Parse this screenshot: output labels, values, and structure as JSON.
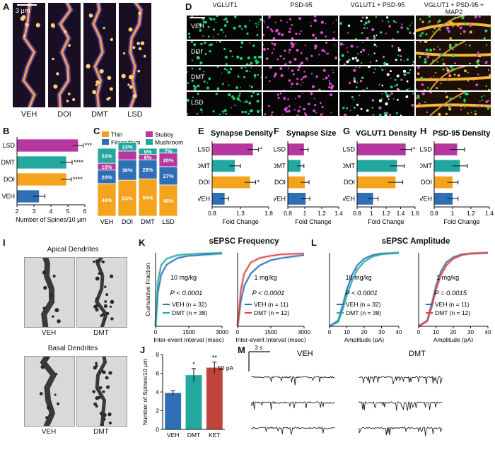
{
  "panel_letters": [
    "A",
    "B",
    "C",
    "D",
    "E",
    "F",
    "G",
    "H",
    "I",
    "J",
    "K",
    "L",
    "M"
  ],
  "colors": {
    "VEH": "#2e6fb5",
    "DOI": "#f5a21c",
    "DMT": "#22a89f",
    "LSD": "#b5379f",
    "KET": "#c1443c",
    "VEH_1mg": "#2e6fb5",
    "DMT_1mg": "#e0443c",
    "stubby": "#b5379f",
    "mushroom": "#22a89f",
    "thin": "#f5a21c",
    "filopodium": "#2e6fb5"
  },
  "panel_A": {
    "scale_label": "3 μm",
    "labels": [
      "VEH",
      "DOI",
      "DMT",
      "LSD"
    ]
  },
  "panel_D": {
    "scale_label": "10 μm",
    "col_headers": [
      "VGLUT1",
      "PSD-95",
      "VGLUT1 + PSD-95",
      "VGLUT1 + PSD-95 + MAP2"
    ],
    "row_labels": [
      "VEH",
      "DOI",
      "DMT",
      "LSD"
    ]
  },
  "panel_I": {
    "apical_title": "Apical Dendrites",
    "basal_title": "Basal Dendrites",
    "labels": [
      "VEH",
      "DMT"
    ]
  },
  "panel_K": {
    "title": "sEPSC Frequency"
  },
  "panel_L": {
    "title": "sEPSC Amplitude"
  },
  "panel_M": {
    "scale_time": "3 s",
    "scale_amp": "50 pA",
    "labels": [
      "VEH",
      "DMT"
    ]
  },
  "chart_data": [
    {
      "id": "B",
      "type": "bar",
      "orientation": "horizontal",
      "categories": [
        "LSD",
        "DMT",
        "DOI",
        "VEH"
      ],
      "values": [
        5.6,
        4.9,
        4.9,
        3.3
      ],
      "errors": [
        0.3,
        0.35,
        0.3,
        0.35
      ],
      "significance": [
        "****",
        "****",
        "****",
        ""
      ],
      "xlabel": "Number of Spines/10 μm",
      "xlim": [
        2,
        6
      ],
      "xticks": [
        2,
        3,
        4,
        5,
        6
      ]
    },
    {
      "id": "C",
      "type": "bar",
      "stacked": true,
      "categories": [
        "VEH",
        "DOI",
        "DMT",
        "LSD"
      ],
      "legend": [
        "Thin",
        "Stubby",
        "Filopodium",
        "Mushroom"
      ],
      "series": [
        {
          "name": "Thin",
          "values": [
            48,
            53,
            55,
            46
          ]
        },
        {
          "name": "Filopodium",
          "values": [
            20,
            30,
            28,
            27
          ]
        },
        {
          "name": "Stubby",
          "values": [
            10,
            13,
            8,
            20
          ]
        },
        {
          "name": "Mushroom",
          "values": [
            22,
            13,
            9,
            7
          ]
        }
      ],
      "segment_labels": [
        [
          "48%",
          "20%",
          "10%",
          "22%"
        ],
        [
          "53%",
          "30%",
          "",
          "13%"
        ],
        [
          "55%",
          "28%",
          "8%",
          "9%"
        ],
        [
          "46%",
          "27%",
          "20%",
          "7%"
        ]
      ]
    },
    {
      "id": "E",
      "type": "bar",
      "orientation": "horizontal",
      "title": "Synapse Density",
      "categories": [
        "LSD",
        "DMT",
        "DOI",
        "VEH"
      ],
      "values": [
        1.52,
        1.2,
        1.47,
        1.02
      ],
      "errors": [
        0.1,
        0.1,
        0.1,
        0.07
      ],
      "significance": [
        "*",
        "",
        "*",
        ""
      ],
      "xlabel": "Fold Change",
      "xlim": [
        0.8,
        1.8
      ],
      "xticks": [
        0.8,
        1.3,
        1.8
      ]
    },
    {
      "id": "F",
      "type": "bar",
      "orientation": "horizontal",
      "title": "Synapse Size",
      "categories": [
        "LSD",
        "DMT",
        "DOI",
        "VEH"
      ],
      "values": [
        0.99,
        0.95,
        1.0,
        1.01
      ],
      "errors": [
        0.05,
        0.04,
        0.05,
        0.05
      ],
      "significance": [
        "",
        "",
        "",
        ""
      ],
      "xlabel": "Fold Change",
      "xlim": [
        0.8,
        1.4
      ],
      "xticks": [
        0.8,
        1.0,
        1.2,
        1.4
      ]
    },
    {
      "id": "G",
      "type": "bar",
      "orientation": "horizontal",
      "title": "VGLUT1 Density",
      "categories": [
        "LSD",
        "DMT",
        "DOI",
        "VEH"
      ],
      "values": [
        1.47,
        1.35,
        1.33,
        1.02
      ],
      "errors": [
        0.08,
        0.1,
        0.1,
        0.07
      ],
      "significance": [
        "*",
        "",
        "",
        ""
      ],
      "xlabel": "Fold Change",
      "xlim": [
        0.8,
        1.6
      ],
      "xticks": [
        0.8,
        1.0,
        1.2,
        1.4,
        1.6
      ]
    },
    {
      "id": "H",
      "type": "bar",
      "orientation": "horizontal",
      "title": "PSD-95 Density",
      "categories": [
        "LSD",
        "DMT",
        "DOI",
        "VEH"
      ],
      "values": [
        1.05,
        1.08,
        1.0,
        1.0
      ],
      "errors": [
        0.08,
        0.08,
        0.06,
        0.06
      ],
      "significance": [
        "",
        "",
        "",
        ""
      ],
      "xlabel": "Fold Change",
      "xlim": [
        0.8,
        1.4
      ],
      "xticks": [
        0.8,
        1.0,
        1.2,
        1.4
      ]
    },
    {
      "id": "J",
      "type": "bar",
      "categories": [
        "VEH",
        "DMT",
        "KET"
      ],
      "values": [
        3.9,
        5.8,
        6.6
      ],
      "errors": [
        0.25,
        0.7,
        0.6
      ],
      "significance": [
        "",
        "*",
        "**"
      ],
      "ylabel": "Number of Spines/10 μm",
      "ylim": [
        0,
        8
      ],
      "yticks": [
        0,
        2,
        4,
        6,
        8
      ]
    },
    {
      "id": "K1",
      "type": "line",
      "subtitle": "10 mg/kg",
      "xlabel": "Inter-event Interval (msec)",
      "ylabel": "Cumulative Fraction",
      "xlim": [
        0,
        3000
      ],
      "xticks": [
        0,
        1500,
        3000
      ],
      "ylim": [
        0,
        1.0
      ],
      "p_text": "P < 0.0001",
      "series": [
        {
          "name": "VEH (n = 32)",
          "x": [
            0,
            100,
            250,
            500,
            1000,
            1500,
            2000,
            3000
          ],
          "y": [
            0,
            0.45,
            0.7,
            0.84,
            0.93,
            0.96,
            0.97,
            0.99
          ]
        },
        {
          "name": "DMT (n = 38)",
          "x": [
            0,
            100,
            250,
            500,
            1000,
            1500,
            2000,
            3000
          ],
          "y": [
            0,
            0.6,
            0.83,
            0.92,
            0.97,
            0.98,
            0.99,
            1.0
          ]
        }
      ]
    },
    {
      "id": "K2",
      "type": "line",
      "subtitle": "1 mg/kg",
      "xlabel": "Inter-event Interval (msec)",
      "xlim": [
        0,
        3000
      ],
      "xticks": [
        0,
        1500,
        3000
      ],
      "ylim": [
        0,
        1.0
      ],
      "p_text": "P < 0.0001",
      "series": [
        {
          "name": "VEH (n = 11)",
          "x": [
            0,
            150,
            300,
            600,
            1000,
            1500,
            2000,
            3000
          ],
          "y": [
            0,
            0.35,
            0.55,
            0.72,
            0.83,
            0.9,
            0.93,
            0.97
          ]
        },
        {
          "name": "DMT (n = 12)",
          "x": [
            0,
            150,
            300,
            600,
            1000,
            1500,
            2000,
            3000
          ],
          "y": [
            0,
            0.5,
            0.72,
            0.87,
            0.93,
            0.96,
            0.98,
            0.99
          ]
        }
      ]
    },
    {
      "id": "L1",
      "type": "line",
      "subtitle": "10 mg/kg",
      "xlabel": "Amplitude (pA)",
      "xlim": [
        0,
        40
      ],
      "xticks": [
        0,
        10,
        20,
        30,
        40
      ],
      "ylim": [
        0,
        1.0
      ],
      "p_text": "P < 0.0001",
      "series": [
        {
          "name": "VEH (n = 32)",
          "x": [
            0,
            5,
            8,
            10,
            13,
            16,
            20,
            25,
            30,
            40
          ],
          "y": [
            0,
            0.08,
            0.32,
            0.5,
            0.7,
            0.83,
            0.92,
            0.97,
            0.99,
            1.0
          ]
        },
        {
          "name": "DMT (n = 38)",
          "x": [
            0,
            5,
            8,
            10,
            13,
            16,
            20,
            25,
            30,
            40
          ],
          "y": [
            0,
            0.06,
            0.26,
            0.42,
            0.62,
            0.77,
            0.88,
            0.95,
            0.98,
            1.0
          ]
        }
      ]
    },
    {
      "id": "L2",
      "type": "line",
      "subtitle": "1 mg/kg",
      "xlabel": "Amplitude (pA)",
      "xlim": [
        0,
        40
      ],
      "xticks": [
        0,
        10,
        20,
        30,
        40
      ],
      "ylim": [
        0,
        1.0
      ],
      "p_text": "P = 0.0015",
      "series": [
        {
          "name": "VEH (n = 11)",
          "x": [
            0,
            5,
            8,
            10,
            13,
            16,
            20,
            25,
            30,
            40
          ],
          "y": [
            0,
            0.08,
            0.35,
            0.55,
            0.75,
            0.87,
            0.94,
            0.98,
            0.99,
            1.0
          ]
        },
        {
          "name": "DMT (n = 12)",
          "x": [
            0,
            5,
            8,
            10,
            13,
            16,
            20,
            25,
            30,
            40
          ],
          "y": [
            0,
            0.07,
            0.3,
            0.5,
            0.7,
            0.83,
            0.92,
            0.97,
            0.99,
            1.0
          ]
        }
      ]
    }
  ]
}
